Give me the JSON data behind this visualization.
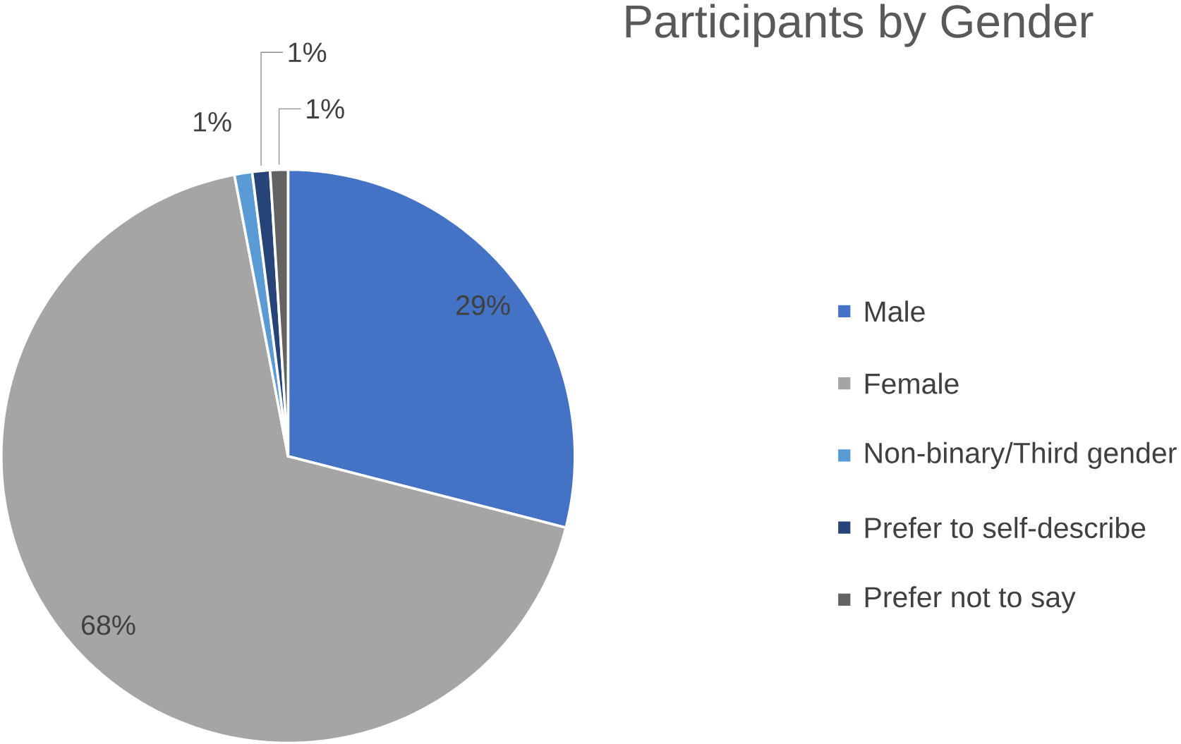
{
  "chart_data": {
    "type": "pie",
    "title": "Participants by Gender",
    "categories": [
      "Male",
      "Female",
      "Non-binary/Third gender",
      "Prefer to self-describe",
      "Prefer not to say"
    ],
    "values": [
      29,
      68,
      1,
      1,
      1
    ],
    "colors": [
      "#4472c4",
      "#a5a5a5",
      "#5b9bd5",
      "#264478",
      "#636363"
    ],
    "value_labels": [
      "29%",
      "68%",
      "1%",
      "1%",
      "1%"
    ],
    "legend": "right"
  }
}
